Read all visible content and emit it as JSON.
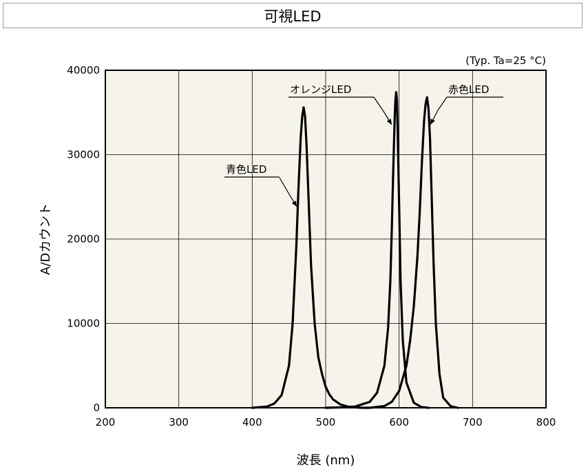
{
  "chart_data": {
    "type": "line",
    "title": "可視LED",
    "condition": "(Typ. Ta=25 °C)",
    "xlabel": "波長 (nm)",
    "ylabel": "A/Dカウント",
    "xlim": [
      200,
      800
    ],
    "ylim": [
      0,
      40000
    ],
    "xticks": [
      "200",
      "300",
      "400",
      "500",
      "600",
      "700",
      "800"
    ],
    "yticks": [
      "0",
      "10000",
      "20000",
      "30000",
      "40000"
    ],
    "grid": true,
    "series": [
      {
        "name": "青色LED",
        "x": [
          400,
          420,
          430,
          440,
          450,
          455,
          460,
          463,
          466,
          468,
          470,
          472,
          474,
          477,
          480,
          485,
          490,
          495,
          500,
          505,
          510,
          520,
          530,
          540,
          550,
          560
        ],
        "y": [
          0,
          150,
          500,
          1500,
          5000,
          10000,
          19000,
          26000,
          32000,
          34500,
          35600,
          34500,
          31000,
          24000,
          17000,
          10000,
          6000,
          4000,
          2500,
          1600,
          1000,
          400,
          150,
          50,
          0,
          0
        ]
      },
      {
        "name": "オレンジLED",
        "x": [
          500,
          520,
          540,
          560,
          570,
          580,
          585,
          588,
          590,
          592,
          594,
          595,
          596,
          597,
          598,
          600,
          602,
          605,
          610,
          620,
          630,
          640
        ],
        "y": [
          0,
          50,
          150,
          700,
          1800,
          5000,
          9500,
          15000,
          21000,
          28000,
          34500,
          36500,
          37400,
          36500,
          33000,
          24000,
          15000,
          8000,
          3000,
          600,
          100,
          0
        ]
      },
      {
        "name": "赤色LED",
        "x": [
          560,
          580,
          590,
          600,
          610,
          615,
          620,
          625,
          628,
          631,
          634,
          636,
          638,
          640,
          642,
          644,
          647,
          650,
          655,
          660,
          670,
          680
        ],
        "y": [
          0,
          200,
          700,
          2000,
          5000,
          8000,
          12000,
          18000,
          23000,
          29000,
          34000,
          36000,
          36800,
          35500,
          32000,
          26000,
          17000,
          10000,
          4000,
          1200,
          200,
          0
        ]
      }
    ]
  }
}
